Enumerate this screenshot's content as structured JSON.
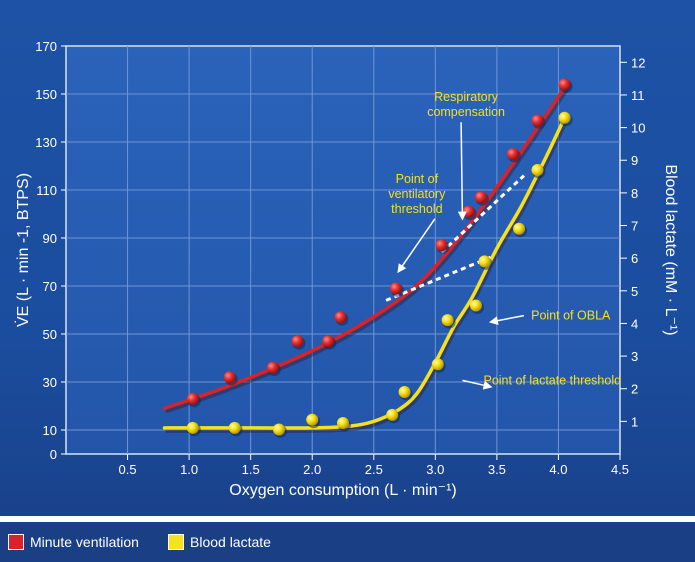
{
  "chart_data": {
    "type": "scatter",
    "xlabel": "Oxygen consumption (L · min⁻¹)",
    "ylabel": "V̇E (L · min -1, BTPS)",
    "y2label": "Blood lactate (mM · L⁻¹)",
    "xlim": [
      0,
      4.5
    ],
    "ylim": [
      0,
      170
    ],
    "y2lim": [
      0,
      12.5
    ],
    "x_ticks": [
      "0.5",
      "1.0",
      "1.5",
      "2.0",
      "2.5",
      "3.0",
      "3.5",
      "4.0",
      "4.5"
    ],
    "y_ticks": [
      "0",
      "10",
      "30",
      "50",
      "70",
      "90",
      "110",
      "130",
      "150",
      "170"
    ],
    "y2_ticks": [
      "1",
      "2",
      "3",
      "4",
      "5",
      "6",
      "7",
      "8",
      "9",
      "10",
      "11",
      "12"
    ],
    "grid": true,
    "series": [
      {
        "name": "Minute ventilation",
        "color": "#d8232a",
        "axis": "left",
        "points": [
          [
            1.03,
            23
          ],
          [
            1.33,
            32
          ],
          [
            1.68,
            36
          ],
          [
            1.88,
            47
          ],
          [
            2.13,
            47
          ],
          [
            2.23,
            57
          ],
          [
            2.68,
            69
          ],
          [
            3.05,
            87
          ],
          [
            3.27,
            101
          ],
          [
            3.37,
            107
          ],
          [
            3.63,
            125
          ],
          [
            3.83,
            139
          ],
          [
            4.05,
            154
          ]
        ],
        "fit": [
          [
            0.8,
            19
          ],
          [
            1.2,
            26
          ],
          [
            1.6,
            34
          ],
          [
            2.0,
            43
          ],
          [
            2.4,
            54
          ],
          [
            2.8,
            68
          ],
          [
            3.1,
            84
          ],
          [
            3.4,
            104
          ],
          [
            3.7,
            126
          ],
          [
            3.95,
            145
          ],
          [
            4.08,
            155
          ]
        ]
      },
      {
        "name": "Blood lactate",
        "color": "#f5e11c",
        "axis": "right",
        "points": [
          [
            1.03,
            0.8
          ],
          [
            1.37,
            0.8
          ],
          [
            1.73,
            0.75
          ],
          [
            2.0,
            1.05
          ],
          [
            2.25,
            0.95
          ],
          [
            2.65,
            1.2
          ],
          [
            2.75,
            1.9
          ],
          [
            3.02,
            2.75
          ],
          [
            3.1,
            4.1
          ],
          [
            3.33,
            4.55
          ],
          [
            3.4,
            5.9
          ],
          [
            3.68,
            6.9
          ],
          [
            3.83,
            8.7
          ],
          [
            4.05,
            10.3
          ]
        ],
        "fit": [
          [
            0.8,
            0.8
          ],
          [
            1.5,
            0.8
          ],
          [
            2.0,
            0.8
          ],
          [
            2.3,
            0.85
          ],
          [
            2.5,
            1.0
          ],
          [
            2.7,
            1.35
          ],
          [
            2.85,
            1.85
          ],
          [
            3.0,
            2.8
          ],
          [
            3.15,
            3.9
          ],
          [
            3.3,
            4.8
          ],
          [
            3.5,
            6.3
          ],
          [
            3.7,
            7.6
          ],
          [
            3.9,
            9.1
          ],
          [
            4.05,
            10.3
          ]
        ]
      }
    ],
    "extrapolations": [
      {
        "axis": "left",
        "points": [
          [
            2.6,
            64
          ],
          [
            3.45,
            82
          ]
        ]
      },
      {
        "axis": "left",
        "points": [
          [
            3.05,
            84
          ],
          [
            3.72,
            116
          ]
        ]
      }
    ],
    "annotations": [
      {
        "text": [
          "Respiratory",
          "compensation"
        ],
        "color": "#f5e11c",
        "at": [
          3.25,
          147
        ],
        "arrow_to": [
          3.22,
          98
        ]
      },
      {
        "text": [
          "Point of",
          "ventilatory",
          "threshold"
        ],
        "color": "#f5e11c",
        "at": [
          2.85,
          113
        ],
        "arrow_to": [
          2.7,
          76
        ]
      },
      {
        "text": [
          "Point of OBLA"
        ],
        "color": "#f5e11c",
        "at": [
          4.1,
          56
        ],
        "arrow_to": [
          3.45,
          55
        ]
      },
      {
        "text": [
          "Point of lactate threshold"
        ],
        "color": "#f5e11c",
        "at": [
          3.95,
          29
        ],
        "arrow_to": [
          3.45,
          28
        ]
      }
    ]
  },
  "legend": {
    "items": [
      {
        "label": "Minute ventilation",
        "color": "#d8232a"
      },
      {
        "label": "Blood lactate",
        "color": "#f5e11c"
      }
    ]
  }
}
